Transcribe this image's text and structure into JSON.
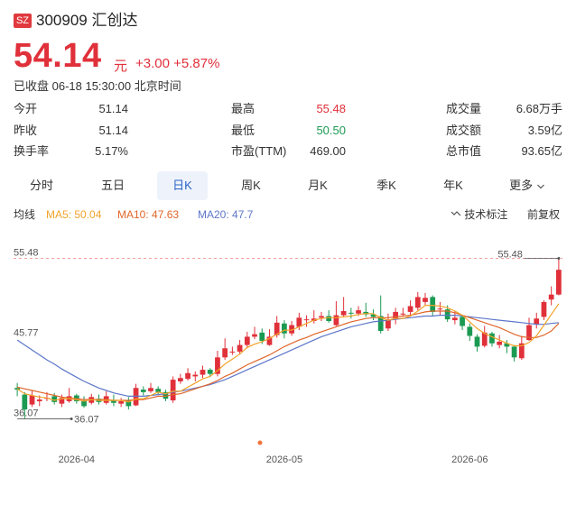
{
  "header": {
    "exchange_badge": "SZ",
    "code_name": "300909 汇创达",
    "price": "54.14",
    "unit": "元",
    "change": "+3.00 +5.87%",
    "status": "已收盘 06-18 15:30:00 北京时间"
  },
  "stats": [
    {
      "label": "今开",
      "value": "51.14"
    },
    {
      "label": "最高",
      "value": "55.48"
    },
    {
      "label": "成交量",
      "value": "6.68万手"
    },
    {
      "label": "昨收",
      "value": "51.14"
    },
    {
      "label": "最低",
      "value": "50.50"
    },
    {
      "label": "成交额",
      "value": "3.59亿"
    },
    {
      "label": "换手率",
      "value": "5.17%"
    },
    {
      "label": "市盈(TTM)",
      "value": "469.00"
    },
    {
      "label": "总市值",
      "value": "93.65亿"
    }
  ],
  "tabs": [
    "分时",
    "五日",
    "日K",
    "周K",
    "月K",
    "季K",
    "年K",
    "更多"
  ],
  "active_tab": "日K",
  "ma_bar": {
    "title": "均线",
    "ma5": "MA5: 50.04",
    "ma10": "MA10: 47.63",
    "ma20": "MA20: 47.7",
    "tech_label": "技术标注",
    "adjust_label": "前复权"
  },
  "colors": {
    "up": "#e0303a",
    "down": "#1b9a52",
    "ma5": "#f2a32b",
    "ma10": "#e0662a",
    "ma20": "#5d76c9",
    "active_tab_bg": "#eef3fb",
    "active_tab_text": "#2a63c8"
  },
  "icons": [
    "tool-icon",
    "chevron-down-icon",
    "dot-marker-icon"
  ],
  "chart_data": {
    "type": "candlestick",
    "ylim": [
      33.5,
      57.5
    ],
    "y_ticks": [
      "55.48",
      "45.77",
      "36.07"
    ],
    "x_ticks": [
      {
        "label": "2026-04",
        "index": 8
      },
      {
        "label": "2026-05",
        "index": 36
      },
      {
        "label": "2026-06",
        "index": 61
      }
    ],
    "high_marker": {
      "label": "55.48",
      "index": 73,
      "value": 55.48
    },
    "low_marker": {
      "label": "36.07",
      "index": 0,
      "value": 36.07
    },
    "candles": [
      [
        39.8,
        39.6,
        40.4,
        38.8
      ],
      [
        39.0,
        37.2,
        39.3,
        36.1
      ],
      [
        37.8,
        38.9,
        39.5,
        37.5
      ],
      [
        38.2,
        38.4,
        38.9,
        37.6
      ],
      [
        38.5,
        38.6,
        39.3,
        38.2
      ],
      [
        38.8,
        38.1,
        39.2,
        37.8
      ],
      [
        37.9,
        38.6,
        39.0,
        37.5
      ],
      [
        38.2,
        38.8,
        39.8,
        38.0
      ],
      [
        38.9,
        38.2,
        39.1,
        37.9
      ],
      [
        38.3,
        37.6,
        38.8,
        37.4
      ],
      [
        38.0,
        38.7,
        39.1,
        37.8
      ],
      [
        38.5,
        38.1,
        39.0,
        37.8
      ],
      [
        38.0,
        38.8,
        39.4,
        37.8
      ],
      [
        38.3,
        38.0,
        39.0,
        37.6
      ],
      [
        37.9,
        38.2,
        38.6,
        37.5
      ],
      [
        38.3,
        37.6,
        38.7,
        37.2
      ],
      [
        37.7,
        39.8,
        40.3,
        37.6
      ],
      [
        39.6,
        39.3,
        40.0,
        38.9
      ],
      [
        39.4,
        39.8,
        40.4,
        39.2
      ],
      [
        39.7,
        39.3,
        40.0,
        39.0
      ],
      [
        39.3,
        38.5,
        39.6,
        38.2
      ],
      [
        38.3,
        40.8,
        41.2,
        38.0
      ],
      [
        40.6,
        41.0,
        41.5,
        40.3
      ],
      [
        40.9,
        41.6,
        42.2,
        40.7
      ],
      [
        41.2,
        41.4,
        41.8,
        40.6
      ],
      [
        41.4,
        42.0,
        42.5,
        41.0
      ],
      [
        42.0,
        41.5,
        42.2,
        41.1
      ],
      [
        41.5,
        43.5,
        44.3,
        41.2
      ],
      [
        43.5,
        44.6,
        45.8,
        43.2
      ],
      [
        44.2,
        44.2,
        44.8,
        43.8
      ],
      [
        44.2,
        45.0,
        45.6,
        43.9
      ],
      [
        45.0,
        46.0,
        46.6,
        44.6
      ],
      [
        46.0,
        46.3,
        47.2,
        45.7
      ],
      [
        46.5,
        45.5,
        47.0,
        45.1
      ],
      [
        45.0,
        46.0,
        46.9,
        44.9
      ],
      [
        46.2,
        47.7,
        48.5,
        45.9
      ],
      [
        47.6,
        46.4,
        48.0,
        45.8
      ],
      [
        46.4,
        47.4,
        47.9,
        46.1
      ],
      [
        47.2,
        48.3,
        48.9,
        46.8
      ],
      [
        48.0,
        48.1,
        48.6,
        47.2
      ],
      [
        47.9,
        48.2,
        49.2,
        47.6
      ],
      [
        48.3,
        48.5,
        49.0,
        47.9
      ],
      [
        48.5,
        47.9,
        49.2,
        47.7
      ],
      [
        47.4,
        48.6,
        50.3,
        47.3
      ],
      [
        48.6,
        49.1,
        50.8,
        48.4
      ],
      [
        48.9,
        48.8,
        49.5,
        48.2
      ],
      [
        48.8,
        49.2,
        49.7,
        48.5
      ],
      [
        49.0,
        48.7,
        50.1,
        48.4
      ],
      [
        48.7,
        48.4,
        49.3,
        48.0
      ],
      [
        48.5,
        46.7,
        51.0,
        46.4
      ],
      [
        47.0,
        48.1,
        48.8,
        46.7
      ],
      [
        48.2,
        49.0,
        49.5,
        47.5
      ],
      [
        48.8,
        48.8,
        49.5,
        48.4
      ],
      [
        49.0,
        49.7,
        50.4,
        48.6
      ],
      [
        49.5,
        50.8,
        51.4,
        49.2
      ],
      [
        50.2,
        50.7,
        51.3,
        49.8
      ],
      [
        50.8,
        49.0,
        51.0,
        48.5
      ],
      [
        49.4,
        49.4,
        50.2,
        48.6
      ],
      [
        49.3,
        48.1,
        49.8,
        47.8
      ],
      [
        48.0,
        48.3,
        49.1,
        47.5
      ],
      [
        48.4,
        47.3,
        48.6,
        46.8
      ],
      [
        47.2,
        46.1,
        47.6,
        45.5
      ],
      [
        46.0,
        44.8,
        46.3,
        44.2
      ],
      [
        44.9,
        46.5,
        47.3,
        44.7
      ],
      [
        46.4,
        45.2,
        46.6,
        44.8
      ],
      [
        45.0,
        45.4,
        46.2,
        44.6
      ],
      [
        45.2,
        44.8,
        45.6,
        44.0
      ],
      [
        44.8,
        43.5,
        45.0,
        43.0
      ],
      [
        43.4,
        45.2,
        46.1,
        43.2
      ],
      [
        45.6,
        47.4,
        48.3,
        45.5
      ],
      [
        47.5,
        48.2,
        48.9,
        47.0
      ],
      [
        48.4,
        50.2,
        50.4,
        48.0
      ],
      [
        50.5,
        51.1,
        52.1,
        49.8
      ],
      [
        51.1,
        54.1,
        55.5,
        51.0
      ]
    ],
    "ma_series": {
      "ma5": [
        39.7,
        39.1,
        38.9,
        38.7,
        38.6,
        38.3,
        38.5,
        38.5,
        38.4,
        38.2,
        38.4,
        38.3,
        38.3,
        38.3,
        38.3,
        38.1,
        38.5,
        38.5,
        38.9,
        39.3,
        39.1,
        39.4,
        39.4,
        39.9,
        40.4,
        40.9,
        41.2,
        41.9,
        42.7,
        43.3,
        43.9,
        44.7,
        45.1,
        45.4,
        45.8,
        46.3,
        46.8,
        46.8,
        47.2,
        47.6,
        48.0,
        48.2,
        48.3,
        48.3,
        48.4,
        48.5,
        48.7,
        48.8,
        48.8,
        48.3,
        48.0,
        48.2,
        48.2,
        48.5,
        49.1,
        49.8,
        49.8,
        49.7,
        49.5,
        49.1,
        48.6,
        47.8,
        47.0,
        46.4,
        46.0,
        45.6,
        45.2,
        44.9,
        44.9,
        45.3,
        46.1,
        47.4,
        48.7,
        50.0
      ],
      "ma10": [
        39.9,
        39.7,
        39.5,
        39.3,
        39.1,
        38.9,
        38.7,
        38.6,
        38.5,
        38.4,
        38.4,
        38.4,
        38.4,
        38.3,
        38.3,
        38.3,
        38.4,
        38.4,
        38.6,
        38.8,
        38.8,
        39.0,
        39.1,
        39.4,
        39.7,
        40.0,
        40.3,
        40.7,
        41.2,
        41.6,
        42.1,
        42.6,
        43.0,
        43.4,
        43.8,
        44.3,
        44.8,
        45.2,
        45.6,
        45.9,
        46.3,
        46.6,
        46.9,
        47.2,
        47.5,
        47.8,
        48.0,
        48.2,
        48.3,
        48.3,
        48.3,
        48.4,
        48.5,
        48.6,
        48.8,
        49.0,
        49.1,
        49.1,
        49.1,
        48.9,
        48.6,
        48.3,
        48.0,
        47.7,
        47.4,
        47.1,
        46.7,
        46.3,
        46.0,
        45.9,
        45.9,
        46.2,
        46.7,
        47.6
      ],
      "ma20": [
        45.6,
        45.0,
        44.4,
        43.8,
        43.2,
        42.7,
        42.1,
        41.6,
        41.1,
        40.6,
        40.2,
        39.8,
        39.5,
        39.2,
        39.0,
        38.8,
        38.8,
        38.8,
        38.9,
        39.0,
        39.1,
        39.3,
        39.4,
        39.6,
        39.8,
        40.0,
        40.2,
        40.5,
        40.8,
        41.2,
        41.6,
        42.0,
        42.4,
        42.8,
        43.2,
        43.6,
        44.0,
        44.4,
        44.8,
        45.2,
        45.6,
        46.0,
        46.3,
        46.6,
        46.9,
        47.2,
        47.4,
        47.6,
        47.8,
        47.9,
        48.0,
        48.1,
        48.2,
        48.3,
        48.4,
        48.5,
        48.5,
        48.6,
        48.6,
        48.6,
        48.5,
        48.4,
        48.3,
        48.2,
        48.1,
        48.0,
        47.9,
        47.8,
        47.7,
        47.6,
        47.5,
        47.5,
        47.6,
        47.7
      ]
    }
  }
}
